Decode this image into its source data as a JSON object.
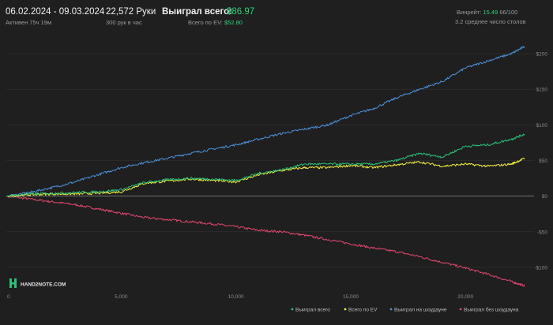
{
  "header": {
    "date_range": "06.02.2024 - 09.03.2024",
    "active": "Активен 75ч 19м",
    "hands": "22,572 Руки",
    "hands_rate": "300 рук в час",
    "won_label": "Выиграл всего:",
    "won_value": "$86.97",
    "ev_label": "Всего по EV:",
    "ev_value": "$52.80",
    "winrate_label": "Винрейт:",
    "winrate_value": "15.49",
    "winrate_suffix": "66/100",
    "tables": "3.2 среднее число столов"
  },
  "logo_text": "HAND2NOTE.COM",
  "colors": {
    "background": "#1f1f1f",
    "total": "#2bc17a",
    "ev": "#f2f03c",
    "showdown": "#4a90d9",
    "non_showdown": "#e0456e",
    "accent_green": "#2ed47a"
  },
  "chart_data": {
    "type": "line",
    "xlim": [
      0,
      22572
    ],
    "ylim": [
      -130,
      210
    ],
    "x_ticks": [
      {
        "value": 0,
        "label": "0"
      },
      {
        "value": 5000,
        "label": "5,000"
      },
      {
        "value": 10000,
        "label": "10,000"
      },
      {
        "value": 15000,
        "label": "15,000"
      },
      {
        "value": 20000,
        "label": "20,000"
      }
    ],
    "y_ticks": [
      {
        "value": 200,
        "label": "$200"
      },
      {
        "value": 150,
        "label": "$150"
      },
      {
        "value": 100,
        "label": "$100"
      },
      {
        "value": 50,
        "label": "$50"
      },
      {
        "value": 0,
        "label": "$0"
      },
      {
        "value": -50,
        "label": "-$50"
      },
      {
        "value": -100,
        "label": "-$100"
      }
    ],
    "legend_position": "bottom-right",
    "series": [
      {
        "name": "Выиграл всего",
        "color": "#2bc17a",
        "points": [
          [
            0,
            0
          ],
          [
            1000,
            3
          ],
          [
            2000,
            4
          ],
          [
            3000,
            5
          ],
          [
            4000,
            6
          ],
          [
            5000,
            9
          ],
          [
            6000,
            19
          ],
          [
            7000,
            23
          ],
          [
            8000,
            25
          ],
          [
            9000,
            24
          ],
          [
            10000,
            22
          ],
          [
            11000,
            32
          ],
          [
            12000,
            37
          ],
          [
            13000,
            45
          ],
          [
            14000,
            45
          ],
          [
            15000,
            45
          ],
          [
            16000,
            45
          ],
          [
            17000,
            50
          ],
          [
            18000,
            60
          ],
          [
            19000,
            55
          ],
          [
            20000,
            70
          ],
          [
            21000,
            72
          ],
          [
            22000,
            80
          ],
          [
            22572,
            87
          ]
        ]
      },
      {
        "name": "Всего по EV",
        "color": "#f2f03c",
        "points": [
          [
            0,
            0
          ],
          [
            1000,
            2
          ],
          [
            2000,
            3
          ],
          [
            3000,
            3
          ],
          [
            4000,
            4
          ],
          [
            5000,
            6
          ],
          [
            6000,
            18
          ],
          [
            7000,
            21
          ],
          [
            8000,
            24
          ],
          [
            9000,
            22
          ],
          [
            10000,
            20
          ],
          [
            11000,
            30
          ],
          [
            12000,
            36
          ],
          [
            13000,
            40
          ],
          [
            14000,
            40
          ],
          [
            15000,
            43
          ],
          [
            16000,
            40
          ],
          [
            17000,
            44
          ],
          [
            18000,
            48
          ],
          [
            19000,
            42
          ],
          [
            20000,
            45
          ],
          [
            21000,
            42
          ],
          [
            22000,
            45
          ],
          [
            22572,
            53
          ]
        ]
      },
      {
        "name": "Выиграл на шоудауне",
        "color": "#4a90d9",
        "points": [
          [
            0,
            0
          ],
          [
            1000,
            5
          ],
          [
            2000,
            12
          ],
          [
            3000,
            20
          ],
          [
            4000,
            30
          ],
          [
            5000,
            40
          ],
          [
            6000,
            47
          ],
          [
            7000,
            53
          ],
          [
            8000,
            60
          ],
          [
            9000,
            66
          ],
          [
            10000,
            72
          ],
          [
            11000,
            80
          ],
          [
            12000,
            88
          ],
          [
            13000,
            94
          ],
          [
            14000,
            100
          ],
          [
            15000,
            113
          ],
          [
            16000,
            123
          ],
          [
            17000,
            138
          ],
          [
            18000,
            150
          ],
          [
            19000,
            161
          ],
          [
            20000,
            180
          ],
          [
            21000,
            190
          ],
          [
            22000,
            200
          ],
          [
            22572,
            210
          ]
        ]
      },
      {
        "name": "Выиграл без шоудауна",
        "color": "#e0456e",
        "points": [
          [
            0,
            0
          ],
          [
            1000,
            -4
          ],
          [
            2000,
            -8
          ],
          [
            3000,
            -12
          ],
          [
            4000,
            -18
          ],
          [
            5000,
            -24
          ],
          [
            6000,
            -30
          ],
          [
            7000,
            -33
          ],
          [
            8000,
            -36
          ],
          [
            9000,
            -39
          ],
          [
            10000,
            -43
          ],
          [
            11000,
            -48
          ],
          [
            12000,
            -50
          ],
          [
            13000,
            -55
          ],
          [
            14000,
            -61
          ],
          [
            15000,
            -67
          ],
          [
            16000,
            -73
          ],
          [
            17000,
            -78
          ],
          [
            18000,
            -85
          ],
          [
            19000,
            -93
          ],
          [
            20000,
            -101
          ],
          [
            21000,
            -110
          ],
          [
            22000,
            -120
          ],
          [
            22572,
            -126
          ]
        ]
      }
    ]
  }
}
